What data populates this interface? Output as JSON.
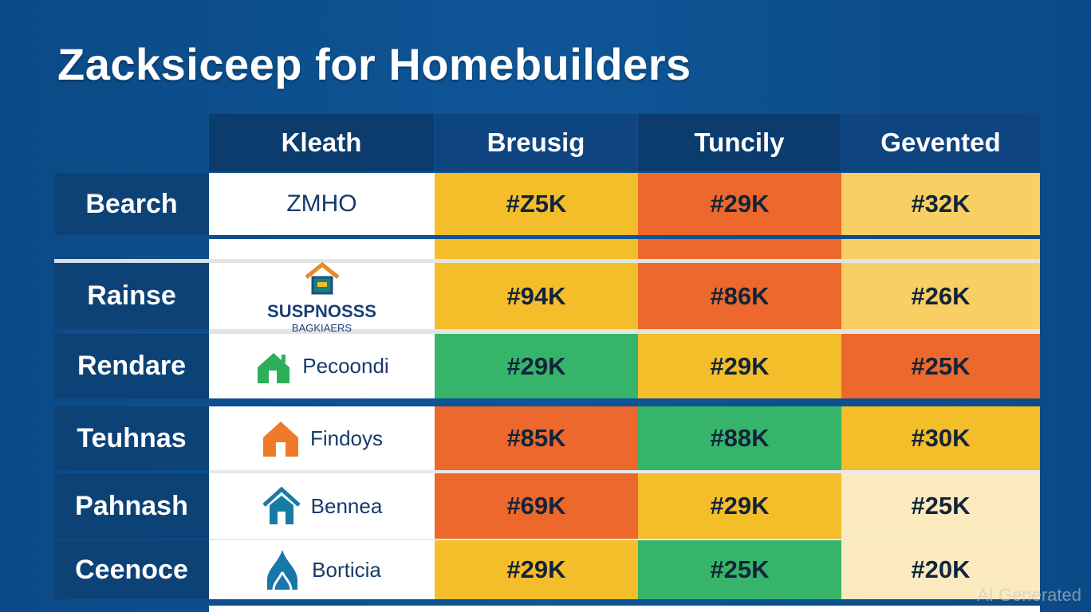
{
  "title": "Zacksiceep for Homebuilders",
  "columns": [
    "Kleath",
    "Breusig",
    "Tuncily",
    "Gevented"
  ],
  "colors": {
    "yellow": "#f4bd2a",
    "orange": "#ec682c",
    "light_yellow": "#f7cf62",
    "green": "#36b56a",
    "cream": "#fbe9c0"
  },
  "rows": [
    {
      "label": "Bearch",
      "brand": "ZMHO",
      "icon": "none",
      "values": [
        "#Z5K",
        "#29K",
        "#32K"
      ]
    },
    {
      "label": "Rainse",
      "brand": "SUSPNOSSS",
      "brand_sub": "BAGKIAERS",
      "icon": "house-logo-icon",
      "values": [
        "#94K",
        "#86K",
        "#26K"
      ]
    },
    {
      "label": "Rendare",
      "brand": "Pecoondi",
      "icon": "green-house-icon",
      "values": [
        "#29K",
        "#29K",
        "#25K"
      ]
    },
    {
      "label": "Teuhnas",
      "brand": "Findoys",
      "icon": "orange-house-icon",
      "values": [
        "#85K",
        "#88K",
        "#30K"
      ]
    },
    {
      "label": "Pahnash",
      "brand": "Bennea",
      "icon": "blue-house-icon",
      "values": [
        "#69K",
        "#29K",
        "#25K"
      ]
    },
    {
      "label": "Ceenoce",
      "brand": "Borticia",
      "icon": "water-drop-icon",
      "values": [
        "#29K",
        "#25K",
        "#20K"
      ]
    }
  ],
  "watermark": "AI Generated"
}
